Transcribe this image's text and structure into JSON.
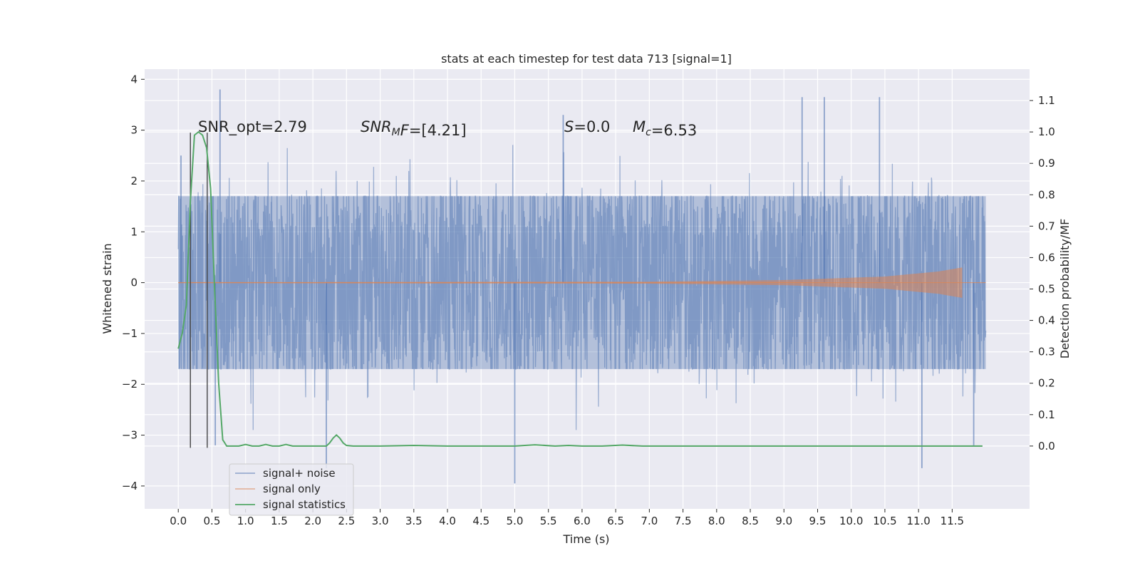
{
  "chart_data": {
    "type": "line",
    "title": "stats at each timestep for test data 713 [signal=1]",
    "xlabel": "Time (s)",
    "ylabel_left": "Whitened strain",
    "ylabel_right": "Detection probability/MF",
    "xlim": [
      -0.5,
      12.65
    ],
    "ylim_left": [
      -4.45,
      4.2
    ],
    "ylim_right": [
      -0.2,
      1.2
    ],
    "grid": true,
    "x_ticks": [
      0.0,
      0.5,
      1.0,
      1.5,
      2.0,
      2.5,
      3.0,
      3.5,
      4.0,
      4.5,
      5.0,
      5.5,
      6.0,
      6.5,
      7.0,
      7.5,
      8.0,
      8.5,
      9.0,
      9.5,
      10.0,
      10.5,
      11.0,
      11.5
    ],
    "x_tick_labels": [
      "0.0",
      "0.5",
      "1.0",
      "1.5",
      "2.0",
      "2.5",
      "3.0",
      "3.5",
      "4.0",
      "4.5",
      "5.0",
      "5.5",
      "6.0",
      "6.5",
      "7.0",
      "7.5",
      "8.0",
      "8.5",
      "9.0",
      "9.5",
      "10.0",
      "10.5",
      "11.0",
      "11.5"
    ],
    "y_left_ticks": [
      4,
      3,
      2,
      1,
      0,
      -1,
      -2,
      -3,
      -4
    ],
    "y_left_tick_labels": [
      "4",
      "3",
      "2",
      "1",
      "0",
      "−1",
      "−2",
      "−3",
      "−4"
    ],
    "y_right_ticks": [
      0.0,
      0.1,
      0.2,
      0.3,
      0.4,
      0.5,
      0.6,
      0.7,
      0.8,
      0.9,
      1.0,
      1.1
    ],
    "y_right_tick_labels": [
      "0.0",
      "0.1",
      "0.2",
      "0.3",
      "0.4",
      "0.5",
      "0.6",
      "0.7",
      "0.8",
      "0.9",
      "1.0",
      "1.1"
    ],
    "annotations": [
      {
        "parts": [
          {
            "t": "SNR_opt=2.79",
            "style": "normal"
          }
        ]
      },
      {
        "parts": [
          {
            "t": "SNR",
            "style": "italic"
          },
          {
            "t": "M",
            "style": "italic-sub"
          },
          {
            "t": "F",
            "style": "italic"
          },
          {
            "t": "=[4.21]",
            "style": "normal"
          }
        ]
      },
      {
        "parts": [
          {
            "t": "S",
            "style": "italic"
          },
          {
            "t": "=0.0",
            "style": "normal"
          }
        ]
      },
      {
        "parts": [
          {
            "t": "M",
            "style": "italic"
          },
          {
            "t": "c",
            "style": "italic-sub"
          },
          {
            "t": "=6.53",
            "style": "normal"
          }
        ]
      }
    ],
    "legend": {
      "position": "lower-left",
      "entries": [
        {
          "label": "signal+ noise",
          "color": "#4c72b0"
        },
        {
          "label": "signal only",
          "color": "#dd8452"
        },
        {
          "label": "signal statistics",
          "color": "#55a868"
        }
      ]
    },
    "series": [
      {
        "name": "signal+ noise",
        "axis": "left",
        "color": "#4c72b0",
        "opacity": 0.5,
        "x_range": [
          0.0,
          12.0
        ],
        "typical_envelope": [
          -1.7,
          1.7
        ],
        "peaks": [
          {
            "x": 0.62,
            "y": 3.8
          },
          {
            "x": 0.04,
            "y": 2.5
          },
          {
            "x": 2.2,
            "y": -3.65
          },
          {
            "x": 5.0,
            "y": -3.95
          },
          {
            "x": 5.72,
            "y": 3.3
          },
          {
            "x": 9.27,
            "y": 3.65
          },
          {
            "x": 9.6,
            "y": 3.65
          },
          {
            "x": 10.42,
            "y": 3.65
          },
          {
            "x": 11.05,
            "y": -3.65
          },
          {
            "x": 11.82,
            "y": -3.2
          },
          {
            "x": 0.55,
            "y": -3.2
          }
        ]
      },
      {
        "name": "signal only",
        "axis": "left",
        "color": "#dd8452",
        "x_range": [
          0.0,
          12.0
        ],
        "amplitude_profile": [
          [
            0.0,
            0.01
          ],
          [
            7.0,
            0.02
          ],
          [
            9.0,
            0.05
          ],
          [
            10.5,
            0.12
          ],
          [
            11.3,
            0.22
          ],
          [
            11.65,
            0.3
          ],
          [
            11.7,
            0.0
          ]
        ]
      },
      {
        "name": "signal statistics",
        "axis": "right",
        "color": "#55a868",
        "x": [
          0.0,
          0.06,
          0.12,
          0.18,
          0.24,
          0.3,
          0.36,
          0.42,
          0.48,
          0.54,
          0.6,
          0.66,
          0.72,
          0.78,
          0.84,
          0.9,
          1.0,
          1.1,
          1.2,
          1.3,
          1.4,
          1.5,
          1.6,
          1.7,
          1.8,
          1.9,
          2.0,
          2.1,
          2.2,
          2.25,
          2.3,
          2.35,
          2.4,
          2.45,
          2.5,
          2.6,
          2.8,
          3.0,
          3.5,
          4.0,
          4.5,
          5.0,
          5.3,
          5.6,
          5.8,
          6.0,
          6.3,
          6.6,
          6.9,
          7.5,
          8.0,
          9.0,
          10.0,
          10.5,
          11.0,
          11.5,
          11.95
        ],
        "y": [
          0.31,
          0.36,
          0.45,
          0.78,
          0.99,
          1.0,
          0.99,
          0.95,
          0.82,
          0.5,
          0.2,
          0.02,
          0.0,
          0.0,
          0.0,
          0.0,
          0.005,
          0.0,
          0.0,
          0.005,
          0.0,
          0.0,
          0.005,
          0.0,
          0.0,
          0.0,
          0.0,
          0.0,
          0.0,
          0.01,
          0.025,
          0.035,
          0.025,
          0.01,
          0.002,
          0.0,
          0.0,
          0.0,
          0.002,
          0.0,
          0.0,
          0.0,
          0.004,
          0.0,
          0.002,
          0.0,
          0.0,
          0.003,
          0.0,
          0.0,
          0.0,
          0.0,
          0.0,
          0.0,
          0.0,
          0.0,
          0.0
        ]
      }
    ],
    "vertical_markers": [
      {
        "x": 0.18,
        "y_from": -3.25,
        "y_to": 2.95,
        "color": "#444444"
      },
      {
        "x": 0.43,
        "y_from": -3.25,
        "y_to": 2.95,
        "color": "#444444"
      }
    ]
  }
}
